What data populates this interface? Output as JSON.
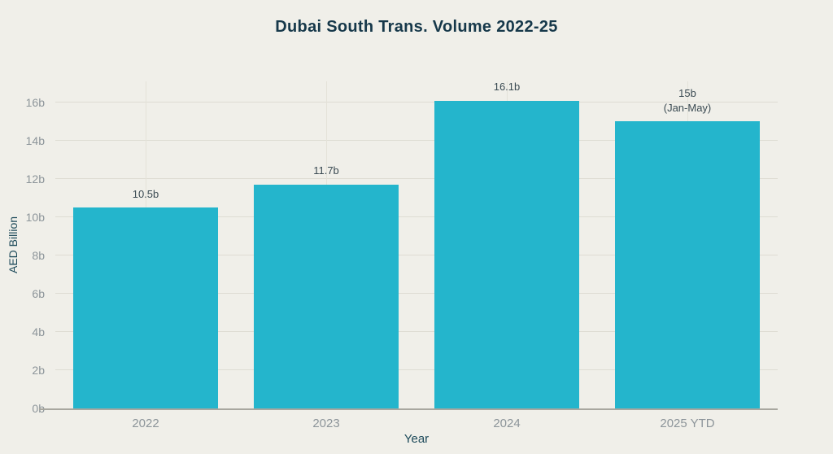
{
  "page": {
    "background_color": "#f0efe9"
  },
  "chart_data": {
    "type": "bar",
    "title": "Dubai South Trans. Volume 2022-25",
    "xlabel": "Year",
    "ylabel": "AED Billion",
    "categories": [
      "2022",
      "2023",
      "2024",
      "2025 YTD"
    ],
    "values": [
      10.5,
      11.7,
      16.1,
      15
    ],
    "bar_labels": [
      [
        "10.5b"
      ],
      [
        "11.7b"
      ],
      [
        "16.1b"
      ],
      [
        "15b",
        "(Jan-May)"
      ]
    ],
    "units": "AED Billion",
    "ylim": [
      0,
      17.1
    ],
    "yticks": [
      0,
      2,
      4,
      6,
      8,
      10,
      12,
      14,
      16
    ],
    "ytick_labels": [
      "0b",
      "2b",
      "4b",
      "6b",
      "8b",
      "10b",
      "12b",
      "14b",
      "16b"
    ],
    "grid": true,
    "legend": "none",
    "colors": {
      "bar": "#24b5cc",
      "title_text": "#16384a",
      "axis_title_text": "#1d4a5a",
      "tick_label_text": "#8d959a",
      "value_label_text": "#3a4a52",
      "h_gridline": "#dedcd3",
      "v_gridline": "#e4e2d9",
      "baseline": "#a8a79f"
    }
  }
}
